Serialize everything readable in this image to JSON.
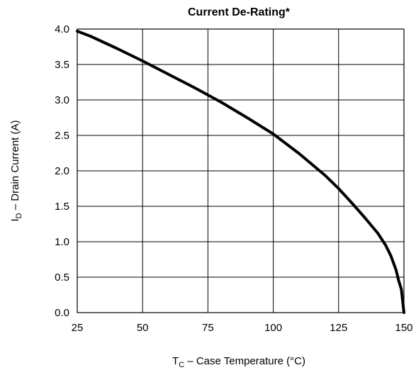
{
  "chart_data": {
    "type": "line",
    "title": "Current De-Rating*",
    "xlabel": {
      "main": "T",
      "sub": "C",
      "rest": " – Case Temperature (°C)"
    },
    "ylabel": {
      "main": "I",
      "sub": "D",
      "rest": " – Drain Current (A)"
    },
    "xlim": [
      25,
      150
    ],
    "ylim": [
      0,
      4.0
    ],
    "xticks": [
      "25",
      "50",
      "75",
      "100",
      "125",
      "150"
    ],
    "yticks": [
      "0.0",
      "0.5",
      "1.0",
      "1.5",
      "2.0",
      "2.5",
      "3.0",
      "3.5",
      "4.0"
    ],
    "grid": true,
    "series": [
      {
        "x": [
          25,
          30,
          40,
          50,
          60,
          70,
          75,
          80,
          90,
          100,
          110,
          120,
          125,
          130,
          135,
          140,
          143,
          145,
          147,
          148,
          149,
          150
        ],
        "y": [
          3.97,
          3.9,
          3.73,
          3.55,
          3.36,
          3.17,
          3.07,
          2.97,
          2.75,
          2.52,
          2.24,
          1.93,
          1.75,
          1.55,
          1.34,
          1.12,
          0.95,
          0.8,
          0.6,
          0.45,
          0.33,
          0.0
        ]
      }
    ]
  }
}
